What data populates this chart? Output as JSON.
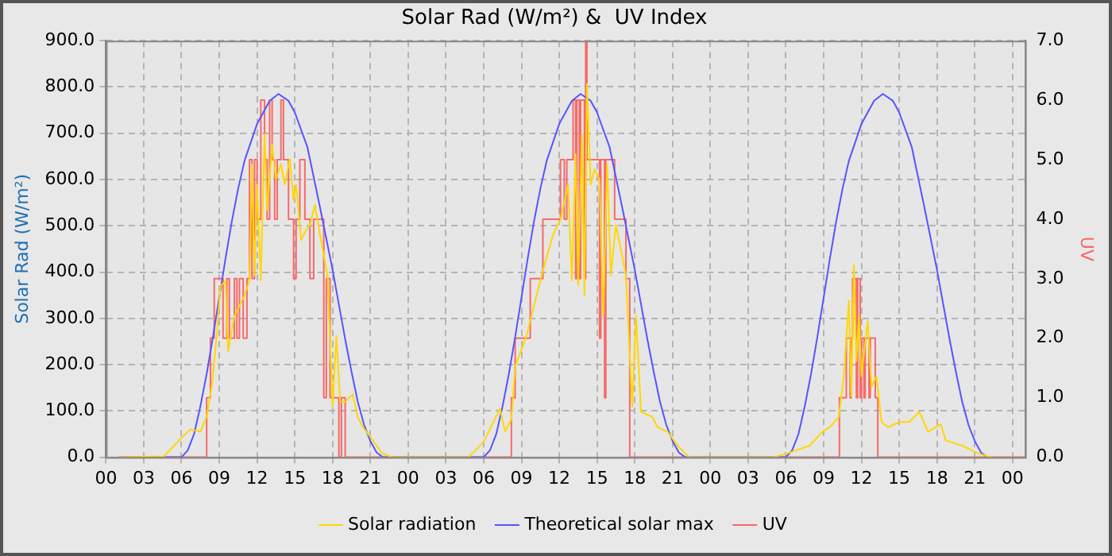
{
  "chart_data": {
    "type": "line",
    "title": "Solar Rad (W/m²) &  UV Index",
    "ylabel": "Solar Rad (W/m²)",
    "y2label": "UV",
    "xlim": [
      0,
      73
    ],
    "xticks": [
      {
        "value": 0,
        "label": "00"
      },
      {
        "value": 3,
        "label": "03"
      },
      {
        "value": 6,
        "label": "06"
      },
      {
        "value": 9,
        "label": "09"
      },
      {
        "value": 12,
        "label": "12"
      },
      {
        "value": 15,
        "label": "15"
      },
      {
        "value": 18,
        "label": "18"
      },
      {
        "value": 21,
        "label": "21"
      },
      {
        "value": 24,
        "label": "00"
      },
      {
        "value": 27,
        "label": "03"
      },
      {
        "value": 30,
        "label": "06"
      },
      {
        "value": 33,
        "label": "09"
      },
      {
        "value": 36,
        "label": "12"
      },
      {
        "value": 39,
        "label": "15"
      },
      {
        "value": 42,
        "label": "18"
      },
      {
        "value": 45,
        "label": "21"
      },
      {
        "value": 48,
        "label": "00"
      },
      {
        "value": 51,
        "label": "03"
      },
      {
        "value": 54,
        "label": "06"
      },
      {
        "value": 57,
        "label": "09"
      },
      {
        "value": 60,
        "label": "12"
      },
      {
        "value": 63,
        "label": "15"
      },
      {
        "value": 66,
        "label": "18"
      },
      {
        "value": 69,
        "label": "21"
      },
      {
        "value": 72,
        "label": "00"
      }
    ],
    "ylim": [
      0,
      900
    ],
    "yticks": [
      {
        "value": 0,
        "label": "0.0"
      },
      {
        "value": 100,
        "label": "100.0"
      },
      {
        "value": 200,
        "label": "200.0"
      },
      {
        "value": 300,
        "label": "300.0"
      },
      {
        "value": 400,
        "label": "400.0"
      },
      {
        "value": 500,
        "label": "500.0"
      },
      {
        "value": 600,
        "label": "600.0"
      },
      {
        "value": 700,
        "label": "700.0"
      },
      {
        "value": 800,
        "label": "800.0"
      },
      {
        "value": 900,
        "label": "900.0"
      }
    ],
    "y2lim": [
      0,
      7
    ],
    "y2ticks": [
      {
        "value": 0,
        "label": "0.0"
      },
      {
        "value": 1,
        "label": "1.0"
      },
      {
        "value": 2,
        "label": "2.0"
      },
      {
        "value": 3,
        "label": "3.0"
      },
      {
        "value": 4,
        "label": "4.0"
      },
      {
        "value": 5,
        "label": "5.0"
      },
      {
        "value": 6,
        "label": "6.0"
      },
      {
        "value": 7,
        "label": "7.0"
      }
    ],
    "grid": true,
    "legend": "bottom",
    "marker": "none",
    "line_style": "solid",
    "series": [
      {
        "name": "Solar radiation",
        "type": "line",
        "color": "#ffd700",
        "x": [
          1,
          4.6,
          5.9,
          6.7,
          7.5,
          8,
          8.4,
          8.8,
          9.1,
          9.5,
          9.7,
          10.2,
          10.6,
          11,
          11.4,
          11.6,
          11.8,
          12,
          12.3,
          12.6,
          12.8,
          13.2,
          13.5,
          13.9,
          14.2,
          14.6,
          14.9,
          15.1,
          15.5,
          15.9,
          16.2,
          16.6,
          17,
          17.6,
          18,
          18.3,
          18.6,
          19,
          19.6,
          20,
          20.4,
          21,
          21.9,
          22.7,
          28.8,
          30,
          31.3,
          31.7,
          32.2,
          32.5,
          33.4,
          34.6,
          35.5,
          36.1,
          36.7,
          37,
          37.3,
          37.5,
          37.8,
          38,
          38.2,
          38.5,
          38.8,
          39.2,
          39.5,
          39.8,
          40.1,
          40.5,
          41.3,
          41.8,
          42.1,
          42.5,
          43.4,
          43.8,
          44.6,
          45.5,
          46.3,
          53,
          54.2,
          55.9,
          56.9,
          57.5,
          58.2,
          58.6,
          59,
          59.2,
          59.4,
          59.6,
          59.8,
          60,
          60.5,
          60.8,
          61.2,
          61.6,
          62.1,
          63,
          63.8,
          64.6,
          65.3,
          66.3,
          66.7,
          68,
          69.2,
          70.3
        ],
        "values": [
          0,
          2,
          39,
          60,
          55,
          88,
          153,
          262,
          371,
          380,
          229,
          305,
          327,
          349,
          382,
          633,
          393,
          589,
          382,
          698,
          534,
          676,
          600,
          633,
          589,
          644,
          556,
          589,
          469,
          491,
          502,
          545,
          480,
          393,
          109,
          262,
          120,
          120,
          136,
          87,
          65,
          44,
          9,
          0,
          0,
          33,
          105,
          55,
          82,
          196,
          262,
          393,
          480,
          513,
          589,
          382,
          655,
          371,
          698,
          349,
          807,
          589,
          622,
          600,
          305,
          633,
          393,
          502,
          393,
          109,
          305,
          98,
          87,
          65,
          55,
          22,
          0,
          0,
          9,
          25,
          55,
          65,
          87,
          175,
          338,
          131,
          415,
          207,
          305,
          175,
          294,
          153,
          175,
          76,
          65,
          76,
          76,
          98,
          55,
          71,
          36,
          25,
          9,
          0
        ]
      },
      {
        "name": "Theoretical solar max",
        "type": "line",
        "color": "#5555ff",
        "x": [
          1,
          6,
          6.5,
          7,
          7.5,
          8,
          8.5,
          9,
          9.5,
          10,
          10.5,
          11,
          12,
          13,
          13.7,
          14.5,
          15,
          16,
          17,
          18,
          18.5,
          19,
          19.5,
          20,
          20.5,
          21,
          21.5,
          22,
          30,
          30.5,
          31,
          31.5,
          32,
          32.5,
          33,
          33.5,
          34,
          34.5,
          35,
          36,
          37,
          37.7,
          38.5,
          39,
          40,
          41,
          42,
          42.5,
          43,
          43.5,
          44,
          44.5,
          45,
          45.5,
          46,
          54,
          54.5,
          55,
          55.5,
          56,
          56.5,
          57,
          57.5,
          58,
          58.5,
          59,
          60,
          61,
          61.7,
          62.5,
          63,
          64,
          65,
          66,
          66.5,
          67,
          67.5,
          68,
          68.5,
          69,
          69.5,
          70
        ],
        "values": [
          0,
          0,
          15,
          50,
          110,
          180,
          260,
          345,
          430,
          510,
          580,
          640,
          720,
          770,
          785,
          770,
          745,
          670,
          540,
          405,
          330,
          255,
          185,
          120,
          70,
          35,
          10,
          0,
          0,
          15,
          50,
          110,
          180,
          260,
          345,
          430,
          510,
          580,
          640,
          720,
          770,
          785,
          770,
          745,
          670,
          540,
          405,
          330,
          255,
          185,
          120,
          70,
          35,
          10,
          0,
          0,
          15,
          50,
          110,
          180,
          260,
          345,
          430,
          510,
          580,
          640,
          720,
          770,
          785,
          770,
          745,
          670,
          540,
          405,
          330,
          255,
          185,
          120,
          70,
          35,
          10,
          0
        ]
      },
      {
        "name": "UV",
        "type": "step",
        "axis": "y2",
        "color": "#f76a6a",
        "x": [
          1,
          8,
          8.3,
          8.6,
          9.3,
          9.6,
          9.8,
          10.2,
          10.4,
          10.6,
          10.9,
          11.2,
          11.4,
          11.6,
          11.8,
          12,
          12.3,
          12.6,
          12.8,
          13,
          13.2,
          13.4,
          13.6,
          13.9,
          14.1,
          14.5,
          14.9,
          15.1,
          15.4,
          15.8,
          16.2,
          16.5,
          17.3,
          17.5,
          17.8,
          18.5,
          18.7,
          19,
          32.2,
          32.5,
          33.7,
          34.7,
          36.1,
          36.4,
          36.6,
          37.1,
          37.3,
          37.4,
          37.6,
          37.7,
          38,
          38.1,
          38.2,
          39.2,
          39.3,
          39.6,
          39.7,
          40.4,
          41.3,
          41.6,
          58.25,
          58.8,
          59.1,
          59.2,
          59.3,
          59.6,
          59.7,
          59.9,
          60,
          60.2,
          60.3,
          60.6,
          60.7,
          61.1,
          61.3,
          73
        ],
        "values": [
          0,
          1,
          2,
          3,
          2,
          3,
          2,
          3,
          2,
          3,
          2,
          3,
          5,
          3,
          5,
          4,
          6,
          5,
          4,
          6,
          5,
          4,
          5,
          6,
          5,
          4,
          3,
          4,
          5,
          4,
          3,
          4,
          1,
          3,
          1,
          0,
          1,
          0,
          1,
          2,
          3,
          4,
          5,
          4,
          5,
          6,
          3,
          6,
          3,
          6,
          3,
          7,
          5,
          2,
          5,
          1,
          5,
          4,
          3,
          0,
          1,
          2,
          1,
          2,
          3,
          1,
          3,
          1,
          2,
          1,
          2,
          1,
          2,
          1,
          0,
          0
        ]
      }
    ]
  }
}
